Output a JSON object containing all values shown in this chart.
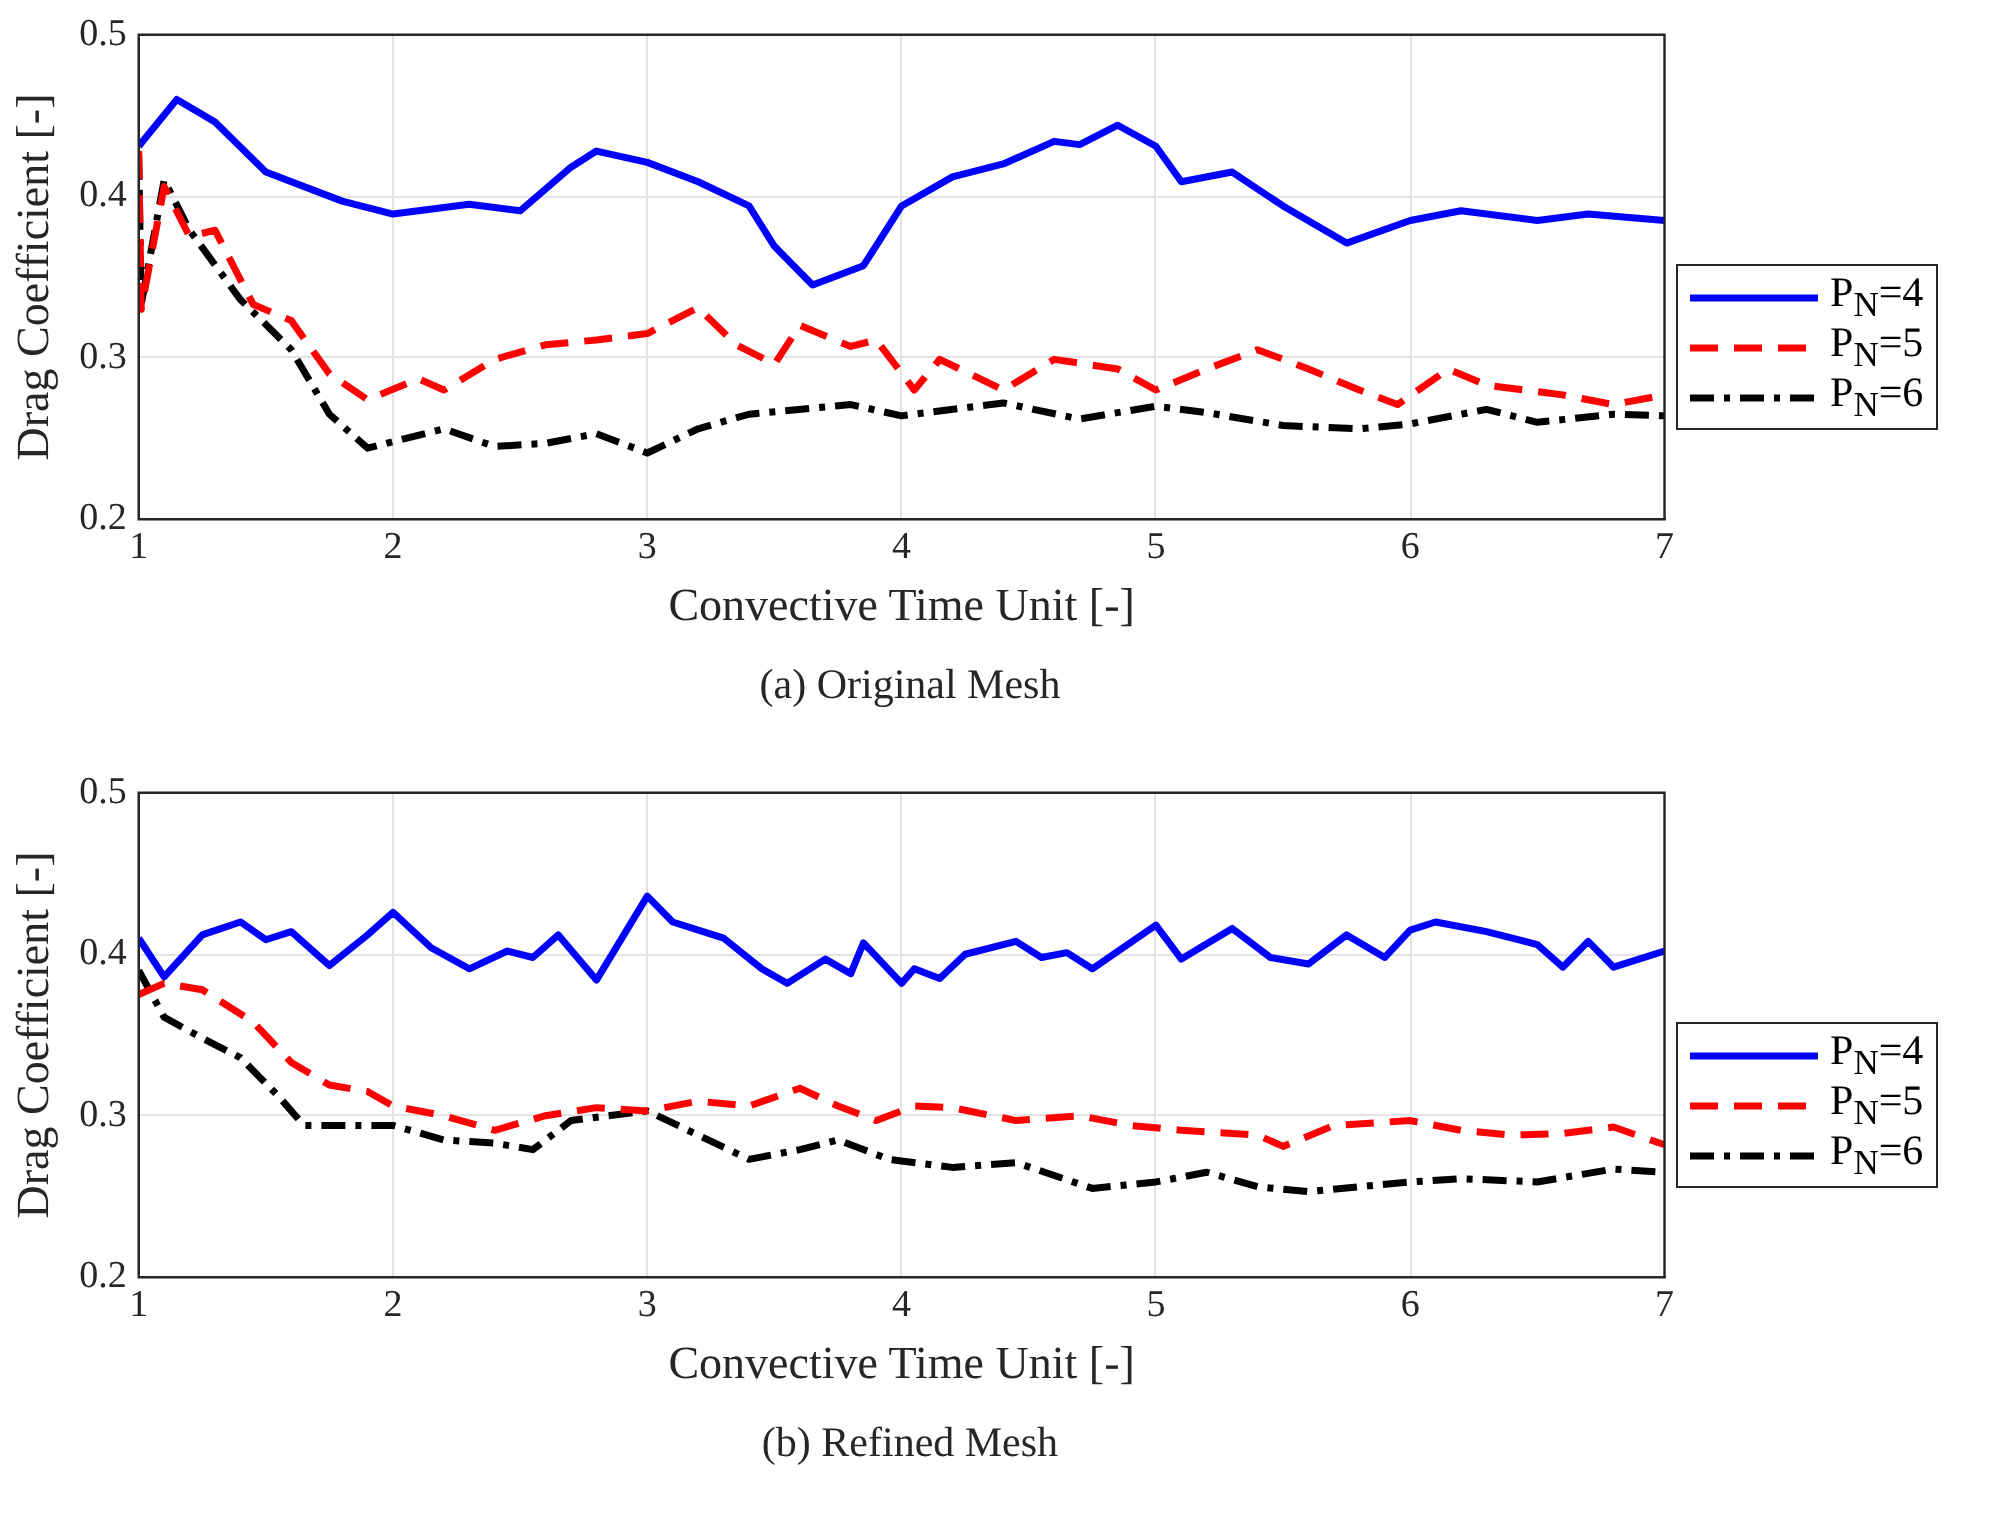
{
  "chart_data": [
    {
      "type": "line",
      "title": "(a) Original Mesh",
      "xlabel": "Convective Time Unit [-]",
      "ylabel": "Drag Coefficient [-]",
      "xlim": [
        1,
        7
      ],
      "ylim": [
        0.2,
        0.5
      ],
      "xticks": [
        1,
        2,
        3,
        4,
        5,
        6,
        7
      ],
      "yticks": [
        0.2,
        0.3,
        0.4,
        0.5
      ],
      "grid": true,
      "legend": "right",
      "series": [
        {
          "name": "P$_{N}$=4",
          "color": "#0000ff",
          "line_style": "solid",
          "x": [
            1,
            1.15,
            1.3,
            1.5,
            1.8,
            2,
            2.3,
            2.5,
            2.7,
            2.8,
            3,
            3.2,
            3.4,
            3.5,
            3.65,
            3.85,
            4,
            4.2,
            4.4,
            4.6,
            4.7,
            4.85,
            5,
            5.1,
            5.3,
            5.5,
            5.75,
            6,
            6.2,
            6.5,
            6.7,
            7
          ],
          "values": [
            0.431,
            0.46,
            0.446,
            0.415,
            0.397,
            0.389,
            0.395,
            0.391,
            0.418,
            0.428,
            0.421,
            0.409,
            0.394,
            0.369,
            0.345,
            0.357,
            0.394,
            0.412,
            0.42,
            0.434,
            0.432,
            0.444,
            0.431,
            0.409,
            0.415,
            0.394,
            0.371,
            0.385,
            0.391,
            0.385,
            0.389,
            0.385
          ]
        },
        {
          "name": "P$_{N}$=5",
          "color": "#ff0000",
          "line_style": "dashed",
          "x": [
            1,
            1.01,
            1.1,
            1.2,
            1.3,
            1.45,
            1.6,
            1.75,
            1.9,
            2.1,
            2.2,
            2.4,
            2.6,
            2.8,
            3,
            3.2,
            3.35,
            3.5,
            3.6,
            3.8,
            3.9,
            4.05,
            4.15,
            4.4,
            4.6,
            4.85,
            5,
            5.2,
            5.4,
            5.6,
            5.8,
            5.95,
            6.15,
            6.3,
            6.6,
            6.8,
            7
          ],
          "values": [
            0.428,
            0.33,
            0.406,
            0.375,
            0.379,
            0.333,
            0.323,
            0.29,
            0.274,
            0.287,
            0.28,
            0.299,
            0.308,
            0.311,
            0.315,
            0.331,
            0.308,
            0.296,
            0.32,
            0.307,
            0.311,
            0.28,
            0.299,
            0.28,
            0.299,
            0.293,
            0.28,
            0.293,
            0.305,
            0.293,
            0.28,
            0.271,
            0.293,
            0.283,
            0.277,
            0.271,
            0.277
          ]
        },
        {
          "name": "P$_{N}$=6",
          "color": "#000000",
          "line_style": "dashdot",
          "x": [
            1,
            1.01,
            1.1,
            1.2,
            1.4,
            1.6,
            1.75,
            1.9,
            2.2,
            2.4,
            2.6,
            2.8,
            3,
            3.2,
            3.4,
            3.8,
            4,
            4.4,
            4.7,
            5,
            5.2,
            5.5,
            5.8,
            6,
            6.3,
            6.5,
            6.8,
            7
          ],
          "values": [
            0.425,
            0.333,
            0.41,
            0.379,
            0.336,
            0.305,
            0.265,
            0.244,
            0.256,
            0.245,
            0.247,
            0.253,
            0.241,
            0.256,
            0.265,
            0.271,
            0.264,
            0.272,
            0.262,
            0.27,
            0.266,
            0.258,
            0.256,
            0.259,
            0.268,
            0.26,
            0.265,
            0.264
          ]
        }
      ]
    },
    {
      "type": "line",
      "title": "(b) Refined Mesh",
      "xlabel": "Convective Time Unit [-]",
      "ylabel": "Drag Coefficient [-]",
      "xlim": [
        1,
        7
      ],
      "ylim": [
        0.2,
        0.5
      ],
      "xticks": [
        1,
        2,
        3,
        4,
        5,
        6,
        7
      ],
      "yticks": [
        0.2,
        0.3,
        0.4,
        0.5
      ],
      "grid": true,
      "legend": "right",
      "series": [
        {
          "name": "P$_{N}$=4",
          "color": "#0000ff",
          "line_style": "solid",
          "x": [
            1,
            1.1,
            1.25,
            1.4,
            1.5,
            1.6,
            1.75,
            1.9,
            2,
            2.15,
            2.3,
            2.45,
            2.55,
            2.65,
            2.8,
            3,
            3.1,
            3.3,
            3.45,
            3.55,
            3.7,
            3.8,
            3.85,
            4,
            4.05,
            4.15,
            4.25,
            4.45,
            4.55,
            4.65,
            4.75,
            5,
            5.1,
            5.3,
            5.45,
            5.6,
            5.75,
            5.9,
            6,
            6.1,
            6.3,
            6.5,
            6.6,
            6.7,
            6.8,
            7
          ],
          "values": [
            0.41,
            0.386,
            0.412,
            0.42,
            0.409,
            0.414,
            0.393,
            0.412,
            0.426,
            0.404,
            0.391,
            0.402,
            0.398,
            0.412,
            0.384,
            0.436,
            0.42,
            0.41,
            0.391,
            0.382,
            0.397,
            0.388,
            0.407,
            0.382,
            0.391,
            0.385,
            0.4,
            0.408,
            0.398,
            0.401,
            0.391,
            0.418,
            0.397,
            0.416,
            0.398,
            0.394,
            0.412,
            0.398,
            0.415,
            0.42,
            0.414,
            0.406,
            0.392,
            0.408,
            0.392,
            0.402
          ]
        },
        {
          "name": "P$_{N}$=5",
          "color": "#ff0000",
          "line_style": "dashed",
          "x": [
            1,
            1.1,
            1.25,
            1.45,
            1.6,
            1.75,
            1.9,
            2,
            2.2,
            2.4,
            2.6,
            2.8,
            3,
            3.2,
            3.4,
            3.6,
            3.75,
            3.9,
            4.05,
            4.2,
            4.45,
            4.7,
            4.9,
            5.1,
            5.4,
            5.5,
            5.7,
            6,
            6.2,
            6.4,
            6.6,
            6.8,
            7
          ],
          "values": [
            0.375,
            0.382,
            0.378,
            0.358,
            0.333,
            0.319,
            0.315,
            0.306,
            0.3,
            0.291,
            0.3,
            0.305,
            0.303,
            0.309,
            0.306,
            0.317,
            0.306,
            0.297,
            0.306,
            0.305,
            0.297,
            0.3,
            0.294,
            0.291,
            0.288,
            0.281,
            0.294,
            0.297,
            0.291,
            0.288,
            0.289,
            0.293,
            0.282
          ]
        },
        {
          "name": "P$_{N}$=6",
          "color": "#000000",
          "line_style": "dashdot",
          "x": [
            1,
            1.1,
            1.25,
            1.4,
            1.55,
            1.65,
            1.8,
            2,
            2.2,
            2.4,
            2.55,
            2.7,
            3,
            3.2,
            3.4,
            3.6,
            3.75,
            3.95,
            4.2,
            4.45,
            4.75,
            5,
            5.2,
            5.4,
            5.6,
            5.8,
            6,
            6.2,
            6.5,
            6.8,
            7
          ],
          "values": [
            0.39,
            0.361,
            0.348,
            0.336,
            0.312,
            0.294,
            0.294,
            0.294,
            0.285,
            0.283,
            0.279,
            0.297,
            0.303,
            0.288,
            0.273,
            0.279,
            0.285,
            0.273,
            0.268,
            0.271,
            0.255,
            0.259,
            0.265,
            0.256,
            0.253,
            0.256,
            0.259,
            0.261,
            0.259,
            0.267,
            0.265
          ]
        }
      ]
    }
  ]
}
